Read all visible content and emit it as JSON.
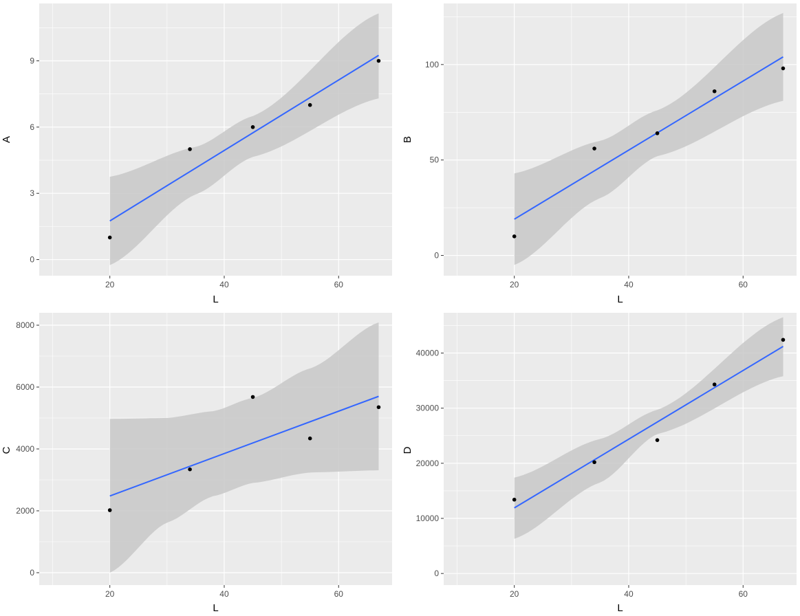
{
  "colors": {
    "panel_background": "#ebebeb",
    "grid_major": "#ffffff",
    "confidence_band": "#c8c8c8",
    "fit_line": "#3366ff",
    "points": "#000000",
    "tick_text": "#4d4d4d",
    "tick_mark": "#333333"
  },
  "chart_data": [
    {
      "type": "scatter",
      "id": "A",
      "title": "",
      "xlabel": "L",
      "ylabel": "A",
      "xlim": [
        7.65,
        69.35
      ],
      "ylim": [
        -0.73,
        11.6
      ],
      "xticks": [
        20,
        40,
        60
      ],
      "xtick_labels": [
        "20",
        "40",
        "60"
      ],
      "yticks": [
        0,
        3,
        6,
        9
      ],
      "ytick_labels": [
        "0",
        "3",
        "6",
        "9"
      ],
      "points": {
        "x": [
          20,
          34,
          45,
          55,
          67
        ],
        "y": [
          1,
          5,
          6,
          7,
          9
        ]
      },
      "fit": {
        "x_start": 20,
        "y_start": 1.75,
        "x_end": 67,
        "y_end": 9.25
      },
      "confidence_band": {
        "x": [
          20,
          35,
          45,
          67
        ],
        "upper": [
          3.75,
          5.1,
          6.5,
          11.15
        ],
        "lower": [
          -0.25,
          2.95,
          4.65,
          7.3
        ]
      }
    },
    {
      "type": "scatter",
      "id": "B",
      "title": "",
      "xlabel": "L",
      "ylabel": "B",
      "xlim": [
        7.65,
        69.35
      ],
      "ylim": [
        -10.6,
        132
      ],
      "xticks": [
        20,
        40,
        60
      ],
      "xtick_labels": [
        "20",
        "40",
        "60"
      ],
      "yticks": [
        0,
        50,
        100
      ],
      "ytick_labels": [
        "0",
        "50",
        "100"
      ],
      "points": {
        "x": [
          20,
          34,
          45,
          55,
          67
        ],
        "y": [
          10,
          56,
          64,
          86,
          98
        ]
      },
      "fit": {
        "x_start": 20,
        "y_start": 19,
        "x_end": 67,
        "y_end": 104
      },
      "confidence_band": {
        "x": [
          20,
          35,
          45,
          67
        ],
        "upper": [
          43,
          60,
          76,
          127
        ],
        "lower": [
          -5,
          30,
          52,
          81
        ]
      }
    },
    {
      "type": "scatter",
      "id": "C",
      "title": "",
      "xlabel": "L",
      "ylabel": "C",
      "xlim": [
        7.65,
        69.35
      ],
      "ylim": [
        -400,
        8400
      ],
      "xticks": [
        20,
        40,
        60
      ],
      "xtick_labels": [
        "20",
        "40",
        "60"
      ],
      "yticks": [
        0,
        2000,
        4000,
        6000,
        8000
      ],
      "ytick_labels": [
        "0",
        "2000",
        "4000",
        "6000",
        "8000"
      ],
      "points": {
        "x": [
          20,
          34,
          45,
          55,
          67
        ],
        "y": [
          2020,
          3340,
          5680,
          4340,
          5350
        ]
      },
      "fit": {
        "x_start": 20,
        "y_start": 2480,
        "x_end": 67,
        "y_end": 5700
      },
      "confidence_band": {
        "x": [
          20,
          30,
          38,
          45,
          55,
          67
        ],
        "upper": [
          4970,
          5000,
          5220,
          5650,
          6600,
          8090
        ],
        "lower": [
          0,
          1620,
          2470,
          2900,
          3240,
          3310
        ]
      }
    },
    {
      "type": "scatter",
      "id": "D",
      "title": "",
      "xlabel": "L",
      "ylabel": "D",
      "xlim": [
        7.65,
        69.35
      ],
      "ylim": [
        -2100,
        47300
      ],
      "xticks": [
        20,
        40,
        60
      ],
      "xtick_labels": [
        "20",
        "40",
        "60"
      ],
      "yticks": [
        0,
        10000,
        20000,
        30000,
        40000
      ],
      "ytick_labels": [
        "0",
        "10000",
        "20000",
        "30000",
        "40000"
      ],
      "points": {
        "x": [
          20,
          34,
          45,
          55,
          67
        ],
        "y": [
          13400,
          20200,
          24200,
          34300,
          42400
        ]
      },
      "fit": {
        "x_start": 20,
        "y_start": 11900,
        "x_end": 67,
        "y_end": 41200
      },
      "confidence_band": {
        "x": [
          20,
          35,
          45,
          67
        ],
        "upper": [
          17400,
          24400,
          29700,
          46500
        ],
        "lower": [
          6300,
          16500,
          25300,
          35800
        ]
      }
    }
  ]
}
